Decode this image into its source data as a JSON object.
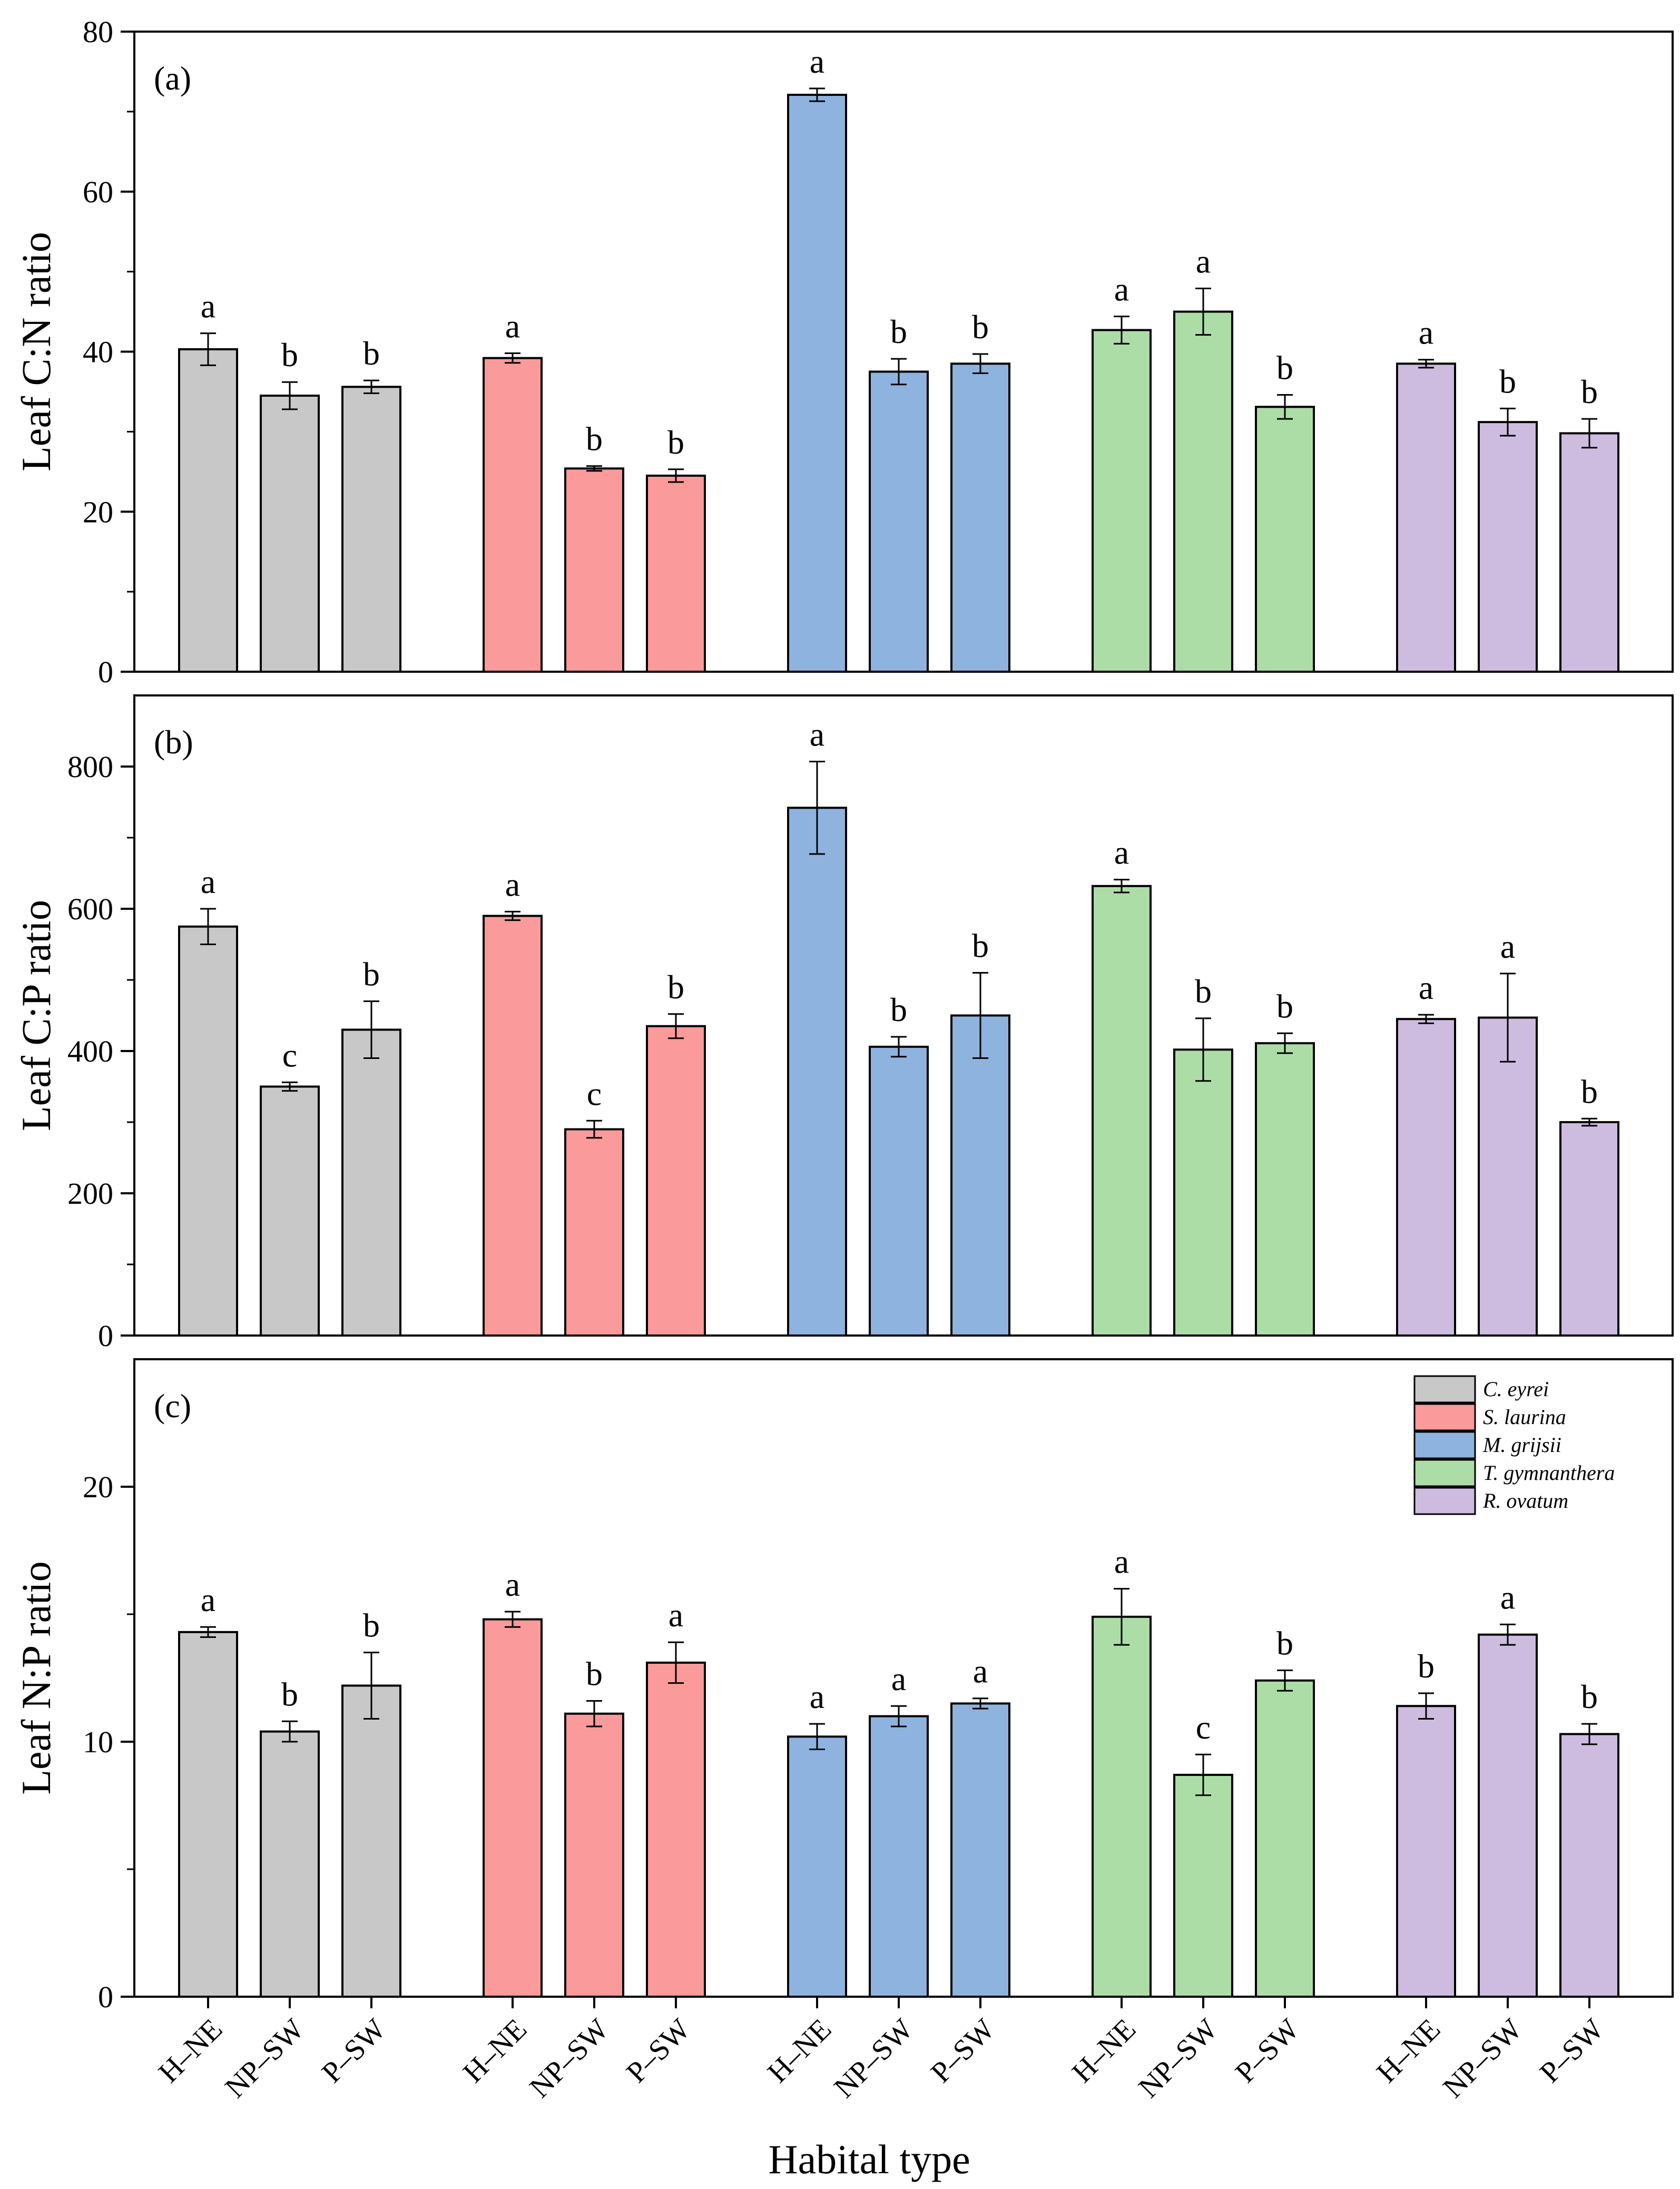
{
  "figure": {
    "xlabel": "Habital type",
    "legend": {
      "placement": "top-right of panel (c)",
      "entries": [
        {
          "label": "C. eyrei",
          "color": "#c8c8c8"
        },
        {
          "label": "S. laurina",
          "color": "#fa9a9a"
        },
        {
          "label": "M. grijsii",
          "color": "#8db3de"
        },
        {
          "label": "T. gymnanthera",
          "color": "#acdda6"
        },
        {
          "label": "R. ovatum",
          "color": "#cdbce0"
        }
      ]
    }
  },
  "chart_data": [
    {
      "type": "bar",
      "panel_label": "(a)",
      "ylabel": "Leaf C:N ratio",
      "ylim": [
        0,
        80
      ],
      "yticks": [
        0,
        20,
        40,
        60,
        80
      ],
      "categories": [
        "H–NE",
        "NP–SW",
        "P–SW"
      ],
      "series": [
        {
          "name": "C. eyrei",
          "color": "#c8c8c8",
          "values": [
            40.3,
            34.5,
            35.6
          ],
          "errors": [
            2.0,
            1.7,
            0.8
          ],
          "letters": [
            "a",
            "b",
            "b"
          ]
        },
        {
          "name": "S. laurina",
          "color": "#fa9a9a",
          "values": [
            39.2,
            25.4,
            24.5
          ],
          "errors": [
            0.6,
            0.3,
            0.8
          ],
          "letters": [
            "a",
            "b",
            "b"
          ]
        },
        {
          "name": "M. grijsii",
          "color": "#8db3de",
          "values": [
            72.1,
            37.5,
            38.5
          ],
          "errors": [
            0.8,
            1.6,
            1.2
          ],
          "letters": [
            "a",
            "b",
            "b"
          ]
        },
        {
          "name": "T. gymnanthera",
          "color": "#acdda6",
          "values": [
            42.7,
            45.0,
            33.1
          ],
          "errors": [
            1.7,
            2.9,
            1.5
          ],
          "letters": [
            "a",
            "a",
            "b"
          ]
        },
        {
          "name": "R. ovatum",
          "color": "#cdbce0",
          "values": [
            38.5,
            31.2,
            29.8
          ],
          "errors": [
            0.5,
            1.7,
            1.8
          ],
          "letters": [
            "a",
            "b",
            "b"
          ]
        }
      ]
    },
    {
      "type": "bar",
      "panel_label": "(b)",
      "ylabel": "Leaf C:P ratio",
      "ylim": [
        0,
        900
      ],
      "yticks": [
        0,
        200,
        400,
        600,
        800
      ],
      "categories": [
        "H–NE",
        "NP–SW",
        "P–SW"
      ],
      "series": [
        {
          "name": "C. eyrei",
          "color": "#c8c8c8",
          "values": [
            575,
            350,
            430
          ],
          "errors": [
            25,
            6,
            40
          ],
          "letters": [
            "a",
            "c",
            "b"
          ]
        },
        {
          "name": "S. laurina",
          "color": "#fa9a9a",
          "values": [
            590,
            290,
            435
          ],
          "errors": [
            6,
            12,
            17
          ],
          "letters": [
            "a",
            "c",
            "b"
          ]
        },
        {
          "name": "M. grijsii",
          "color": "#8db3de",
          "values": [
            742,
            406,
            450
          ],
          "errors": [
            65,
            14,
            60
          ],
          "letters": [
            "a",
            "b",
            "b"
          ]
        },
        {
          "name": "T. gymnanthera",
          "color": "#acdda6",
          "values": [
            632,
            402,
            411
          ],
          "errors": [
            9,
            44,
            14
          ],
          "letters": [
            "a",
            "b",
            "b"
          ]
        },
        {
          "name": "R. ovatum",
          "color": "#cdbce0",
          "values": [
            445,
            447,
            300
          ],
          "errors": [
            6,
            62,
            5
          ],
          "letters": [
            "a",
            "a",
            "b"
          ]
        }
      ]
    },
    {
      "type": "bar",
      "panel_label": "(c)",
      "ylabel": "Leaf N:P ratio",
      "ylim": [
        0,
        25
      ],
      "yticks": [
        0,
        10,
        20
      ],
      "categories": [
        "H–NE",
        "NP–SW",
        "P–SW"
      ],
      "series": [
        {
          "name": "C. eyrei",
          "color": "#c8c8c8",
          "values": [
            14.3,
            10.4,
            12.2
          ],
          "errors": [
            0.2,
            0.4,
            1.3
          ],
          "letters": [
            "a",
            "b",
            "b"
          ]
        },
        {
          "name": "S. laurina",
          "color": "#fa9a9a",
          "values": [
            14.8,
            11.1,
            13.1
          ],
          "errors": [
            0.3,
            0.5,
            0.8
          ],
          "letters": [
            "a",
            "b",
            "a"
          ]
        },
        {
          "name": "M. grijsii",
          "color": "#8db3de",
          "values": [
            10.2,
            11.0,
            11.5
          ],
          "errors": [
            0.5,
            0.4,
            0.2
          ],
          "letters": [
            "a",
            "a",
            "a"
          ]
        },
        {
          "name": "T. gymnanthera",
          "color": "#acdda6",
          "values": [
            14.9,
            8.7,
            12.4
          ],
          "errors": [
            1.1,
            0.8,
            0.4
          ],
          "letters": [
            "a",
            "c",
            "b"
          ]
        },
        {
          "name": "R. ovatum",
          "color": "#cdbce0",
          "values": [
            11.4,
            14.2,
            10.3
          ],
          "errors": [
            0.5,
            0.4,
            0.4
          ],
          "letters": [
            "b",
            "a",
            "b"
          ]
        }
      ]
    }
  ]
}
